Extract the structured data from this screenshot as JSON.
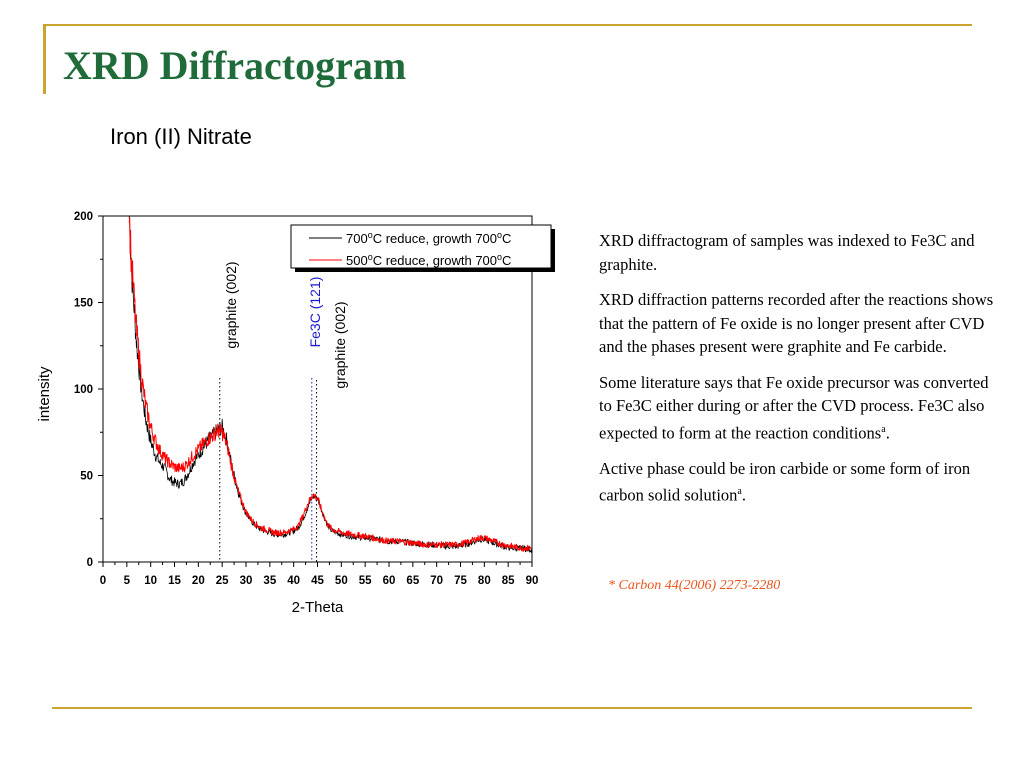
{
  "slide": {
    "title": "XRD Diffractogram",
    "subtitle": "Iron (II) Nitrate",
    "paragraphs": [
      {
        "text": "XRD diffractogram of  samples was indexed to Fe3C and graphite."
      },
      {
        "text": "XRD diffraction patterns recorded after the reactions shows that the pattern of Fe oxide is no longer present after CVD and the phases present were graphite and Fe carbide."
      },
      {
        "text": "Some literature says that Fe oxide precursor was converted to Fe3C either during or after the CVD process. Fe3C also expected to form at the reaction conditions",
        "sup": "a",
        "tail": "."
      },
      {
        "text": "Active phase could be iron carbide or some form of  iron carbon solid solution",
        "sup": "a",
        "tail": "."
      }
    ],
    "citation": "* Carbon 44(2006) 2273-2280"
  },
  "colors": {
    "title": "#1f6b3a",
    "rule": "#c9a42f",
    "series_700": "#000000",
    "series_500": "#ff0000",
    "fe3c_label": "#1a1acc",
    "citation": "#e8561e"
  },
  "chart_data": {
    "type": "line",
    "xlabel": "2-Theta",
    "ylabel": "intensity",
    "xlim": [
      0,
      90
    ],
    "ylim": [
      0,
      200
    ],
    "x_ticks": [
      0,
      5,
      10,
      15,
      20,
      25,
      30,
      35,
      40,
      45,
      50,
      55,
      60,
      65,
      70,
      75,
      80,
      85,
      90
    ],
    "y_ticks": [
      0,
      50,
      100,
      150,
      200
    ],
    "grid": false,
    "legend_position": "top-right",
    "series": [
      {
        "name": "700°C reduce, growth 700°C",
        "label_parts": [
          "700",
          "o",
          "C reduce, growth 700",
          "o",
          "C"
        ],
        "color": "#000000",
        "points": [
          [
            5.5,
            200
          ],
          [
            6,
            168
          ],
          [
            7,
            128
          ],
          [
            8,
            100
          ],
          [
            9,
            82
          ],
          [
            10,
            70
          ],
          [
            11,
            62
          ],
          [
            12,
            57
          ],
          [
            13,
            54
          ],
          [
            14,
            48
          ],
          [
            15,
            46
          ],
          [
            16,
            45
          ],
          [
            17,
            47
          ],
          [
            18,
            52
          ],
          [
            19,
            58
          ],
          [
            20,
            62
          ],
          [
            21,
            66
          ],
          [
            22,
            70
          ],
          [
            23,
            73
          ],
          [
            24,
            76
          ],
          [
            25,
            78
          ],
          [
            26,
            70
          ],
          [
            27,
            56
          ],
          [
            28,
            44
          ],
          [
            29,
            35
          ],
          [
            30,
            28
          ],
          [
            31,
            24
          ],
          [
            32,
            21
          ],
          [
            33,
            19
          ],
          [
            34,
            18
          ],
          [
            35,
            17
          ],
          [
            36,
            16
          ],
          [
            37,
            16
          ],
          [
            38,
            16
          ],
          [
            39,
            17
          ],
          [
            40,
            18
          ],
          [
            41,
            20
          ],
          [
            42,
            25
          ],
          [
            43,
            32
          ],
          [
            44,
            38
          ],
          [
            45,
            37
          ],
          [
            46,
            29
          ],
          [
            47,
            22
          ],
          [
            48,
            18
          ],
          [
            50,
            16
          ],
          [
            52,
            15
          ],
          [
            55,
            14
          ],
          [
            58,
            13
          ],
          [
            60,
            12
          ],
          [
            62,
            12
          ],
          [
            65,
            11
          ],
          [
            68,
            10
          ],
          [
            70,
            10
          ],
          [
            72,
            9
          ],
          [
            74,
            9
          ],
          [
            76,
            10
          ],
          [
            78,
            12
          ],
          [
            79,
            13
          ],
          [
            80,
            13
          ],
          [
            81,
            12
          ],
          [
            82,
            11
          ],
          [
            84,
            9
          ],
          [
            86,
            8
          ],
          [
            88,
            8
          ],
          [
            90,
            7
          ]
        ]
      },
      {
        "name": "500°C reduce, growth 700°C",
        "label_parts": [
          "500",
          "o",
          "C reduce, growth 700",
          "o",
          "C"
        ],
        "color": "#ff0000",
        "points": [
          [
            5.5,
            200
          ],
          [
            6,
            172
          ],
          [
            7,
            135
          ],
          [
            8,
            108
          ],
          [
            9,
            90
          ],
          [
            10,
            78
          ],
          [
            11,
            70
          ],
          [
            12,
            64
          ],
          [
            13,
            60
          ],
          [
            14,
            57
          ],
          [
            15,
            55
          ],
          [
            16,
            54
          ],
          [
            17,
            55
          ],
          [
            18,
            58
          ],
          [
            19,
            62
          ],
          [
            20,
            65
          ],
          [
            21,
            68
          ],
          [
            22,
            71
          ],
          [
            23,
            73
          ],
          [
            24,
            76
          ],
          [
            25,
            75
          ],
          [
            26,
            68
          ],
          [
            27,
            55
          ],
          [
            28,
            44
          ],
          [
            29,
            36
          ],
          [
            30,
            29
          ],
          [
            31,
            25
          ],
          [
            32,
            22
          ],
          [
            33,
            20
          ],
          [
            34,
            19
          ],
          [
            35,
            18
          ],
          [
            36,
            17
          ],
          [
            37,
            17
          ],
          [
            38,
            17
          ],
          [
            39,
            18
          ],
          [
            40,
            19
          ],
          [
            41,
            21
          ],
          [
            42,
            27
          ],
          [
            43,
            34
          ],
          [
            44,
            39
          ],
          [
            45,
            37
          ],
          [
            46,
            29
          ],
          [
            47,
            22
          ],
          [
            48,
            19
          ],
          [
            50,
            17
          ],
          [
            52,
            16
          ],
          [
            55,
            15
          ],
          [
            58,
            13
          ],
          [
            60,
            12
          ],
          [
            62,
            12
          ],
          [
            65,
            11
          ],
          [
            68,
            10
          ],
          [
            70,
            10
          ],
          [
            72,
            10
          ],
          [
            74,
            10
          ],
          [
            76,
            11
          ],
          [
            78,
            13
          ],
          [
            79,
            14
          ],
          [
            80,
            14
          ],
          [
            81,
            13
          ],
          [
            82,
            12
          ],
          [
            84,
            10
          ],
          [
            86,
            9
          ],
          [
            88,
            8
          ],
          [
            90,
            8
          ]
        ]
      }
    ],
    "annotations": [
      {
        "label": "graphite (002)",
        "x": 24.5,
        "color": "#000000"
      },
      {
        "label": "Fe3C (121)",
        "x": 43.8,
        "color": "#1a1acc"
      },
      {
        "label": "graphite (002)",
        "x": 44.8,
        "color": "#000000"
      }
    ]
  }
}
